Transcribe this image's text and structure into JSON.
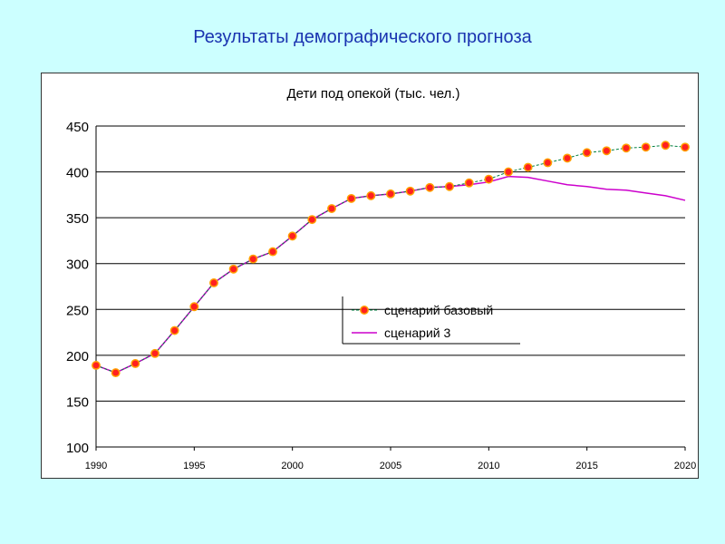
{
  "page": {
    "title": "Результаты демографического прогноза"
  },
  "colors": {
    "background": "#ccffff",
    "title": "#1a33b0",
    "base_line": "#008040",
    "base_marker_fill": "#ff2020",
    "base_marker_stroke": "#ffa000",
    "scenario3_line": "#cc00cc",
    "grid": "#000000"
  },
  "chart_data": {
    "type": "line",
    "title": "Дети под опекой (тыс. чел.)",
    "xlabel": "",
    "ylabel": "",
    "xlim": [
      1990,
      2020
    ],
    "ylim": [
      100,
      450
    ],
    "x_ticks": [
      1990,
      1995,
      2000,
      2005,
      2010,
      2015,
      2020
    ],
    "y_ticks": [
      100,
      150,
      200,
      250,
      300,
      350,
      400,
      450
    ],
    "grid": "horizontal",
    "legend_position": "center-right",
    "series": [
      {
        "name": "сценарий базовый",
        "style": "line-with-markers",
        "x": [
          1990,
          1991,
          1992,
          1993,
          1994,
          1995,
          1996,
          1997,
          1998,
          1999,
          2000,
          2001,
          2002,
          2003,
          2004,
          2005,
          2006,
          2007,
          2008,
          2009,
          2010,
          2011,
          2012,
          2013,
          2014,
          2015,
          2016,
          2017,
          2018,
          2019,
          2020
        ],
        "values": [
          189,
          181,
          191,
          202,
          227,
          253,
          279,
          294,
          305,
          313,
          330,
          348,
          360,
          371,
          374,
          376,
          379,
          383,
          384,
          388,
          392,
          400,
          405,
          410,
          415,
          421,
          423,
          426,
          427,
          429,
          427
        ]
      },
      {
        "name": "сценарий 3",
        "style": "line",
        "x": [
          1990,
          1991,
          1992,
          1993,
          1994,
          1995,
          1996,
          1997,
          1998,
          1999,
          2000,
          2001,
          2002,
          2003,
          2004,
          2005,
          2006,
          2007,
          2008,
          2009,
          2010,
          2011,
          2012,
          2013,
          2014,
          2015,
          2016,
          2017,
          2018,
          2019,
          2020
        ],
        "values": [
          189,
          181,
          191,
          202,
          227,
          253,
          279,
          294,
          305,
          313,
          330,
          348,
          360,
          371,
          374,
          376,
          379,
          383,
          384,
          386,
          389,
          395,
          394,
          390,
          386,
          384,
          381,
          380,
          377,
          374,
          369
        ]
      }
    ]
  }
}
